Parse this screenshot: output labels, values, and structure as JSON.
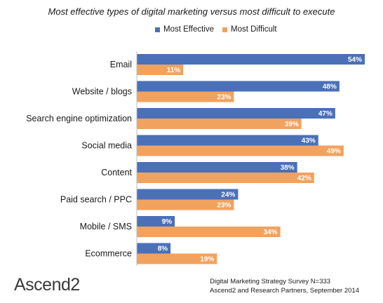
{
  "title": "Most effective types of digital marketing versus most difficult to execute",
  "legend": [
    {
      "label": "Most Effective",
      "color": "#4a70b8"
    },
    {
      "label": "Most Difficult",
      "color": "#f2a25f"
    }
  ],
  "brand": "Ascend2",
  "source": [
    "Digital Marketing Strategy Survey N=333",
    "Ascend2 and Research Partners, September 2014"
  ],
  "chart_data": {
    "type": "bar",
    "orientation": "horizontal",
    "categories": [
      "Email",
      "Website / blogs",
      "Search engine optimization",
      "Social media",
      "Content",
      "Paid search / PPC",
      "Mobile / SMS",
      "Ecommerce"
    ],
    "series": [
      {
        "name": "Most Effective",
        "values": [
          54,
          48,
          47,
          43,
          38,
          24,
          9,
          8
        ],
        "labels": [
          "54%",
          "48%",
          "47%",
          "43%",
          "38%",
          "24%",
          "9%",
          "8%"
        ],
        "color": "#4a70b8"
      },
      {
        "name": "Most Difficult",
        "values": [
          11,
          23,
          39,
          49,
          42,
          23,
          34,
          19
        ],
        "labels": [
          "11%",
          "23%",
          "39%",
          "49%",
          "42%",
          "23%",
          "34%",
          "19%"
        ],
        "color": "#f2a25f"
      }
    ],
    "xlim": [
      0,
      54
    ],
    "legend_position": "top",
    "grid": false
  }
}
